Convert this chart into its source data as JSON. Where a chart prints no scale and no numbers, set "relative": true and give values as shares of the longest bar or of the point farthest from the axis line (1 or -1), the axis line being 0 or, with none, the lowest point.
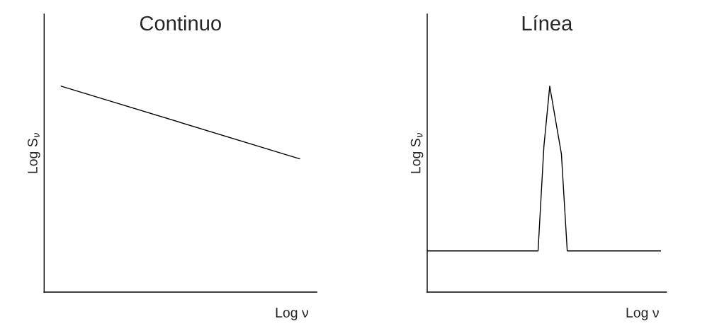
{
  "chart_data": [
    {
      "type": "line",
      "title": "Continuo",
      "xlabel": "Log ν",
      "ylabel": "Log S$_{ν}$",
      "relative": true,
      "color": "#000000",
      "categories": [
        null,
        null,
        null,
        null,
        null,
        null,
        null,
        null,
        null,
        null,
        null,
        null,
        null,
        null,
        null,
        null,
        null
      ],
      "values": [
        null,
        1,
        null,
        null,
        null,
        null,
        null,
        null,
        null,
        null,
        null,
        null,
        null,
        null,
        null,
        0.647,
        null
      ]
    },
    {
      "type": "line",
      "title": "Línea",
      "xlabel": "Log ν",
      "ylabel": "Log S$_{ν}$",
      "relative": true,
      "color": "#000000",
      "categories": [
        null,
        null,
        null,
        null,
        null,
        null,
        null,
        null,
        null,
        null,
        null,
        null,
        null,
        null,
        null,
        null,
        null,
        null,
        null,
        null,
        null,
        null,
        null,
        null,
        null,
        null,
        null,
        null,
        null,
        null,
        null,
        null,
        null,
        null,
        null,
        null,
        null,
        null,
        null,
        null,
        null,
        null
      ],
      "values": [
        0.2,
        null,
        null,
        null,
        null,
        null,
        null,
        null,
        null,
        null,
        null,
        null,
        null,
        null,
        null,
        null,
        null,
        null,
        null,
        0.2,
        0.707,
        1,
        null,
        0.671,
        0.2,
        null,
        null,
        null,
        null,
        null,
        null,
        null,
        null,
        null,
        null,
        null,
        null,
        null,
        null,
        null,
        0.2,
        null
      ]
    }
  ]
}
